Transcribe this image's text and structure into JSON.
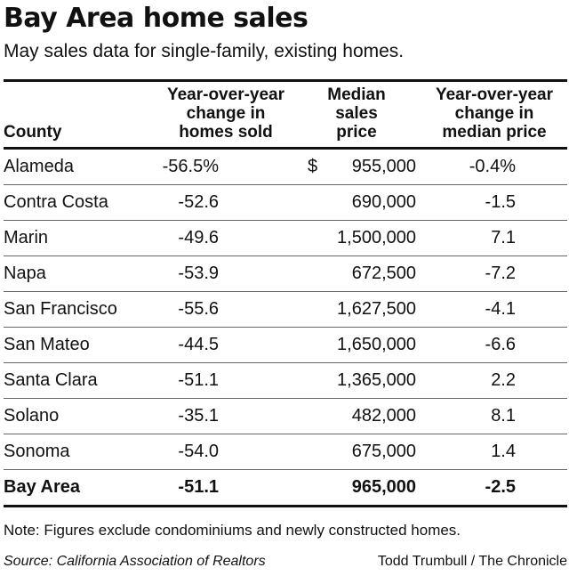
{
  "chart_data": {
    "type": "table",
    "title": "Bay Area home sales",
    "subtitle": "May sales data for single-family, existing homes.",
    "columns": [
      "County",
      "Year-over-year change in homes sold",
      "Median sales price",
      "Year-over-year change in median price"
    ],
    "header_lines": {
      "county": [
        "County"
      ],
      "sold": [
        "Year-over-year",
        "change in",
        "homes sold"
      ],
      "price": [
        "Median",
        "sales",
        "price"
      ],
      "chg": [
        "Year-over-year",
        "change in",
        "median price"
      ]
    },
    "rows": [
      {
        "county": "Alameda",
        "sold": "-56.5%",
        "price_prefix": "$",
        "price": "955,000",
        "chg": "-0.4%"
      },
      {
        "county": "Contra Costa",
        "sold": "-52.6",
        "price_prefix": "",
        "price": "690,000",
        "chg": "-1.5"
      },
      {
        "county": "Marin",
        "sold": "-49.6",
        "price_prefix": "",
        "price": "1,500,000",
        "chg": "7.1"
      },
      {
        "county": "Napa",
        "sold": "-53.9",
        "price_prefix": "",
        "price": "672,500",
        "chg": "-7.2"
      },
      {
        "county": "San Francisco",
        "sold": "-55.6",
        "price_prefix": "",
        "price": "1,627,500",
        "chg": "-4.1"
      },
      {
        "county": "San Mateo",
        "sold": "-44.5",
        "price_prefix": "",
        "price": "1,650,000",
        "chg": "-6.6"
      },
      {
        "county": "Santa Clara",
        "sold": "-51.1",
        "price_prefix": "",
        "price": "1,365,000",
        "chg": "2.2"
      },
      {
        "county": "Solano",
        "sold": "-35.1",
        "price_prefix": "",
        "price": "482,000",
        "chg": "8.1"
      },
      {
        "county": "Sonoma",
        "sold": "-54.0",
        "price_prefix": "",
        "price": "675,000",
        "chg": "1.4"
      }
    ],
    "total": {
      "county": "Bay Area",
      "sold": "-51.1",
      "price": "965,000",
      "chg": "-2.5"
    },
    "note": "Note: Figures exclude condominiums and newly constructed homes.",
    "source": "Source: California Association of Realtors",
    "credit": "Todd Trumbull / The Chronicle"
  }
}
